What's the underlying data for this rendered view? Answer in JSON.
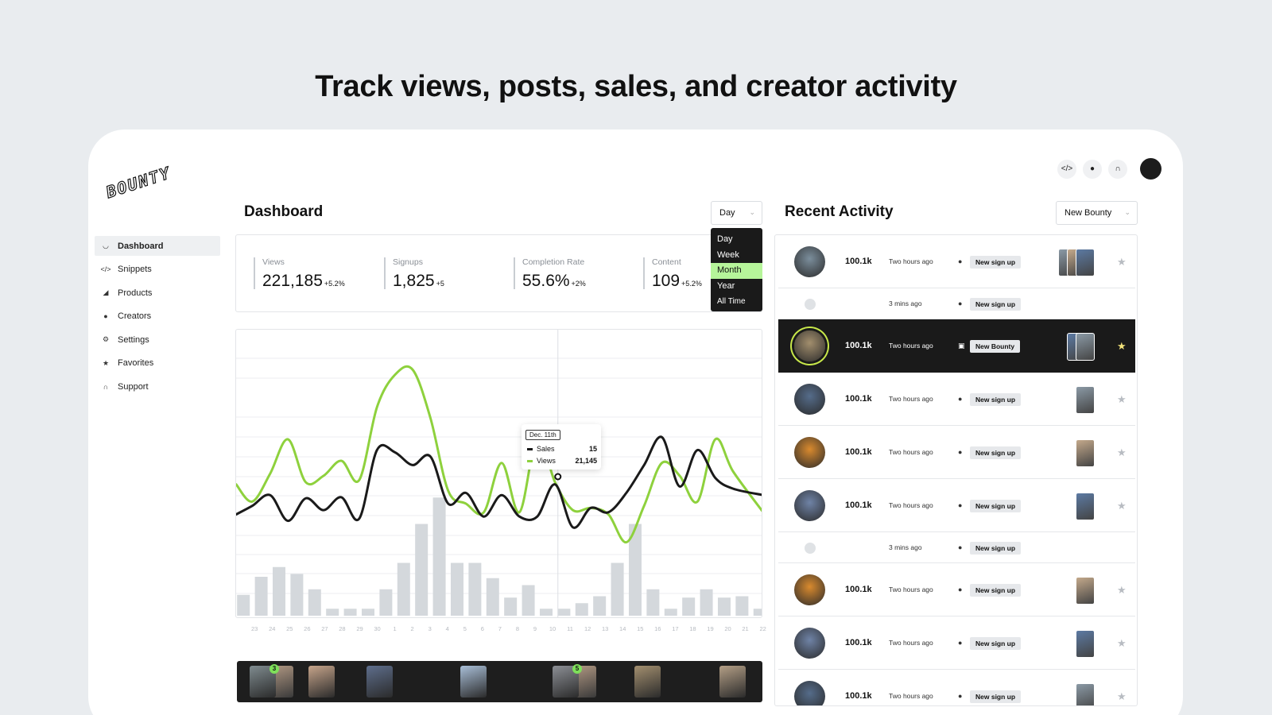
{
  "headline": "Track views, posts, sales, and creator activity",
  "logo": "BOUNTY",
  "top_icons": [
    "code-icon",
    "user-icon",
    "headset-icon",
    "profile-avatar"
  ],
  "sidebar": {
    "items": [
      {
        "label": "Dashboard",
        "icon": "gauge-icon",
        "active": true
      },
      {
        "label": "Snippets",
        "icon": "code-icon"
      },
      {
        "label": "Products",
        "icon": "shoe-icon"
      },
      {
        "label": "Creators",
        "icon": "user-icon"
      },
      {
        "label": "Settings",
        "icon": "gears-icon"
      },
      {
        "label": "Favorites",
        "icon": "star-icon"
      },
      {
        "label": "Support",
        "icon": "headset-icon"
      }
    ]
  },
  "dashboard": {
    "title": "Dashboard",
    "period_select": "Day",
    "period_options": [
      "Day",
      "Week",
      "Month",
      "Year",
      "All Time"
    ],
    "period_highlighted": "Month",
    "stats": [
      {
        "label": "Views",
        "value": "221,185",
        "change": "+5.2%"
      },
      {
        "label": "Signups",
        "value": "1,825",
        "change": "+5"
      },
      {
        "label": "Completion Rate",
        "value": "55.6%",
        "change": "+2%"
      },
      {
        "label": "Content",
        "value": "109",
        "change": "+5.2%"
      }
    ]
  },
  "chart_data": {
    "type": "line",
    "x": [
      "23",
      "24",
      "25",
      "26",
      "27",
      "28",
      "29",
      "30",
      "1",
      "2",
      "3",
      "4",
      "5",
      "6",
      "7",
      "8",
      "9",
      "10",
      "11",
      "12",
      "13",
      "14",
      "15",
      "16",
      "17",
      "18",
      "19",
      "20",
      "21",
      "22"
    ],
    "series": [
      {
        "name": "Views",
        "color": "#8ed13d",
        "values": [
          78,
          62,
          88,
          120,
          80,
          86,
          100,
          82,
          150,
          180,
          185,
          140,
          72,
          60,
          52,
          98,
          52,
          122,
          80,
          54,
          56,
          50,
          24,
          58,
          98,
          86,
          62,
          120,
          90,
          52
        ]
      },
      {
        "name": "Sales",
        "color": "#1a1a1a",
        "values": [
          50,
          58,
          68,
          44,
          65,
          54,
          66,
          46,
          110,
          108,
          96,
          104,
          60,
          70,
          48,
          68,
          48,
          48,
          78,
          38,
          56,
          52,
          70,
          96,
          122,
          76,
          110,
          84,
          74,
          68
        ]
      },
      {
        "name": "bars",
        "color": "#d4d8dc",
        "values": [
          15,
          28,
          35,
          30,
          19,
          5,
          5,
          5,
          19,
          38,
          66,
          85,
          38,
          38,
          27,
          13,
          22,
          5,
          5,
          9,
          14,
          38,
          66,
          19,
          5,
          13,
          19,
          13,
          14,
          5
        ]
      }
    ],
    "tooltip": {
      "date": "Dec. 11th",
      "sales_label": "Sales",
      "sales_value": "15",
      "views_label": "Views",
      "views_value": "21,145"
    },
    "highlight_index": 18
  },
  "thumb_strip": {
    "items": [
      {
        "badge": "3",
        "color": "#7f8b8f"
      },
      {
        "badge": "",
        "color": "#c6a48a"
      },
      {
        "badge": "",
        "color": "#5e6e8c"
      },
      {
        "badge": "",
        "color": "#a9bfd8"
      },
      {
        "badge": "5",
        "color": "#8c8f95"
      },
      {
        "badge": "",
        "color": "#a38f6f"
      },
      {
        "badge": "",
        "color": "#b49f86"
      }
    ]
  },
  "recent_activity": {
    "title": "Recent Activity",
    "filter_select": "New Bounty",
    "rows": [
      {
        "type": "full",
        "count": "100.1k",
        "time": "Two hours ago",
        "tag": "New sign up",
        "avatar": "#7b8e9c",
        "thumbs": 3,
        "starred": false,
        "dark": false
      },
      {
        "type": "compact",
        "time": "3 mins ago",
        "tag": "New sign up"
      },
      {
        "type": "full",
        "count": "100.1k",
        "time": "Two hours ago",
        "tag": "New Bounty",
        "avatar": "#a28e6d",
        "thumbs": 2,
        "starred": true,
        "dark": true
      },
      {
        "type": "full",
        "count": "100.1k",
        "time": "Two hours ago",
        "tag": "New sign up",
        "avatar": "#556c8a",
        "thumbs": 1,
        "starred": false,
        "dark": false
      },
      {
        "type": "full",
        "count": "100.1k",
        "time": "Two hours ago",
        "tag": "New sign up",
        "avatar": "#d98a2e",
        "thumbs": 1,
        "starred": false,
        "dark": false
      },
      {
        "type": "full",
        "count": "100.1k",
        "time": "Two hours ago",
        "tag": "New sign up",
        "avatar": "#6f83a6",
        "thumbs": 1,
        "starred": false,
        "dark": false
      },
      {
        "type": "compact",
        "time": "3 mins ago",
        "tag": "New sign up"
      },
      {
        "type": "full",
        "count": "100.1k",
        "time": "Two hours ago",
        "tag": "New sign up",
        "avatar": "#d98a2e",
        "thumbs": 1,
        "starred": false,
        "dark": false
      },
      {
        "type": "full",
        "count": "100.1k",
        "time": "Two hours ago",
        "tag": "New sign up",
        "avatar": "#6f83a6",
        "thumbs": 1,
        "starred": false,
        "dark": false
      },
      {
        "type": "full",
        "count": "100.1k",
        "time": "Two hours ago",
        "tag": "New sign up",
        "avatar": "#556c8a",
        "thumbs": 1,
        "starred": false,
        "dark": false
      }
    ]
  }
}
